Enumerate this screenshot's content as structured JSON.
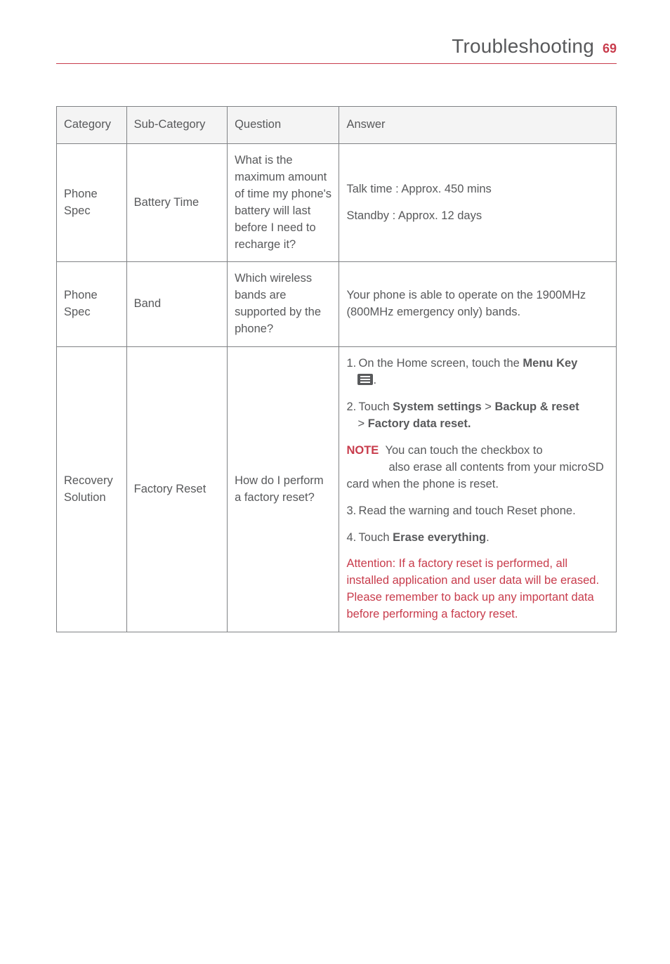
{
  "page": {
    "title": "Troubleshooting",
    "number": "69"
  },
  "table": {
    "headers": {
      "col1": "Category",
      "col2": "Sub-Category",
      "col3": "Question",
      "col4": "Answer"
    },
    "rows": [
      {
        "category": "Phone Spec",
        "sub": "Battery Time",
        "question": "What is the maximum amount of time my phone's battery will last before I need to recharge it?",
        "answer_line1": "Talk time : Approx. 450 mins",
        "answer_line2": "Standby : Approx. 12 days"
      },
      {
        "category": "Phone Spec",
        "sub": "Band",
        "question": "Which wireless bands are supported by the phone?",
        "answer": "Your phone is able to operate on the 1900MHz (800MHz emergency only) bands."
      },
      {
        "category": "Recovery Solution",
        "sub": "Factory Reset",
        "question": "How do I perform a factory reset?",
        "answer": {
          "step1_pre": "1. On the Home screen, touch the ",
          "step1_bold": "Menu Key",
          "step1_post": " ",
          "step2_pre": "2. Touch ",
          "step2_bold1": "System settings",
          "step2_mid": " > ",
          "step2_bold2": "Backup & reset",
          "step2_line2": " > ",
          "step2_bold3": "Factory data reset.",
          "note_label": "NOTE",
          "note_text": "You can touch the checkbox to also erase all contents from your microSD card when the phone is reset.",
          "step3": "3. Read the warning and touch Reset phone.",
          "step4_pre": "4. Touch ",
          "step4_bold": "Erase everything",
          "step4_post": ".",
          "attention": "Attention: If a factory reset is performed, all installed application and user data will be erased. Please remember to back up any important data before performing a factory reset."
        }
      }
    ]
  }
}
